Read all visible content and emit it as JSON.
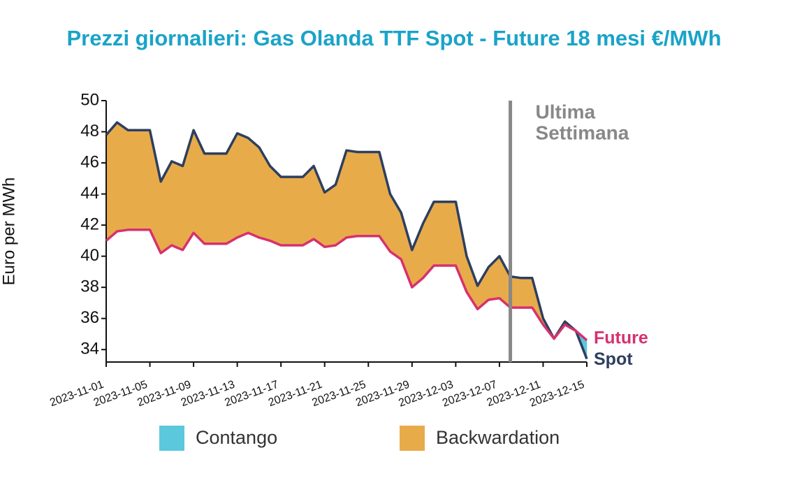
{
  "chart_data": {
    "type": "line",
    "title": "Prezzi giornalieri: Gas Olanda TTF Spot - Future 18 mesi €/MWh",
    "y_label": "Euro per MWh",
    "x": [
      "2023-11-01",
      "2023-11-02",
      "2023-11-03",
      "2023-11-04",
      "2023-11-05",
      "2023-11-06",
      "2023-11-07",
      "2023-11-08",
      "2023-11-09",
      "2023-11-10",
      "2023-11-11",
      "2023-11-12",
      "2023-11-13",
      "2023-11-14",
      "2023-11-15",
      "2023-11-16",
      "2023-11-17",
      "2023-11-18",
      "2023-11-19",
      "2023-11-20",
      "2023-11-21",
      "2023-11-22",
      "2023-11-23",
      "2023-11-24",
      "2023-11-25",
      "2023-11-26",
      "2023-11-27",
      "2023-11-28",
      "2023-11-29",
      "2023-11-30",
      "2023-12-01",
      "2023-12-02",
      "2023-12-03",
      "2023-12-04",
      "2023-12-05",
      "2023-12-06",
      "2023-12-07",
      "2023-12-08",
      "2023-12-09",
      "2023-12-10",
      "2023-12-11",
      "2023-12-12",
      "2023-12-13",
      "2023-12-14",
      "2023-12-15"
    ],
    "series": [
      {
        "name": "Spot",
        "color": "#2d3f5f",
        "values": [
          47.8,
          48.6,
          48.1,
          48.1,
          48.1,
          44.8,
          46.1,
          45.8,
          48.1,
          46.6,
          46.6,
          46.6,
          47.9,
          47.6,
          47.0,
          45.8,
          45.1,
          45.1,
          45.1,
          45.8,
          44.1,
          44.6,
          46.8,
          46.7,
          46.7,
          46.7,
          44.0,
          42.8,
          40.4,
          42.1,
          43.5,
          43.5,
          43.5,
          40.0,
          38.1,
          39.3,
          40.0,
          38.7,
          38.6,
          38.6,
          36.0,
          34.7,
          35.8,
          35.2,
          33.4
        ]
      },
      {
        "name": "Future",
        "color": "#d6316e",
        "values": [
          41.0,
          41.6,
          41.7,
          41.7,
          41.7,
          40.2,
          40.7,
          40.4,
          41.5,
          40.8,
          40.8,
          40.8,
          41.2,
          41.5,
          41.2,
          41.0,
          40.7,
          40.7,
          40.7,
          41.1,
          40.6,
          40.7,
          41.2,
          41.3,
          41.3,
          41.3,
          40.3,
          39.8,
          38.0,
          38.6,
          39.4,
          39.4,
          39.4,
          37.7,
          36.6,
          37.2,
          37.3,
          36.7,
          36.7,
          36.7,
          35.6,
          34.7,
          35.6,
          35.2,
          34.6
        ]
      }
    ],
    "fills": [
      {
        "name": "Contango",
        "color": "#5bc8dc"
      },
      {
        "name": "Backwardation",
        "color": "#e8ab4a"
      }
    ],
    "annotation": {
      "lines": [
        "Ultima",
        "Settimana"
      ],
      "x": "2023-12-08",
      "color": "#888888"
    },
    "xlim": [
      "2023-11-01",
      "2023-12-15"
    ],
    "xticks": [
      "2023-11-01",
      "2023-11-05",
      "2023-11-09",
      "2023-11-13",
      "2023-11-17",
      "2023-11-21",
      "2023-11-25",
      "2023-11-29",
      "2023-12-03",
      "2023-12-07",
      "2023-12-11",
      "2023-12-15"
    ],
    "ylim": [
      33.2,
      50
    ],
    "yticks": [
      34,
      36,
      38,
      40,
      42,
      44,
      46,
      48,
      50
    ]
  }
}
